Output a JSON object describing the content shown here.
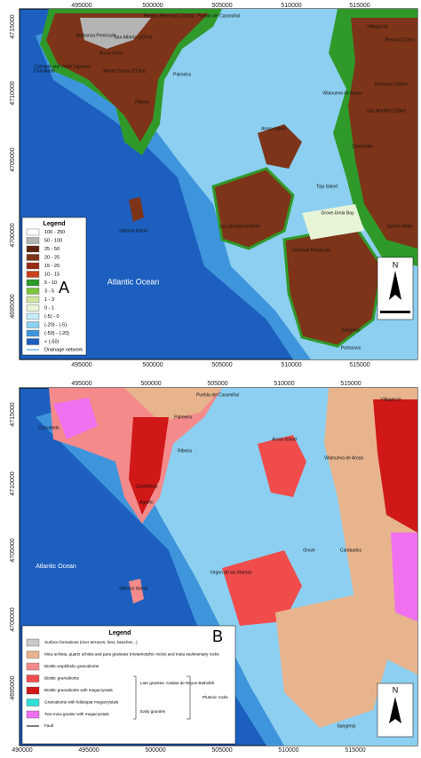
{
  "panel_a": {
    "letter": "A",
    "ocean": "Atlantic Ocean",
    "north": "N",
    "x_ticks": [
      "495000",
      "500000",
      "505000",
      "510000",
      "515000"
    ],
    "y_ticks": [
      "4715000",
      "4710000",
      "4705000",
      "4700000",
      "4695000"
    ],
    "legend": {
      "title": "Legend",
      "items": [
        {
          "label": "100 - 250",
          "color": "#ffffff"
        },
        {
          "label": "50 - 100",
          "color": "#b4b4b4"
        },
        {
          "label": "25 - 50",
          "color": "#5e2410"
        },
        {
          "label": "20 - 25",
          "color": "#7d3418"
        },
        {
          "label": "15 - 20",
          "color": "#9a2a14"
        },
        {
          "label": "10 - 15",
          "color": "#c8401c"
        },
        {
          "label": "5 - 10",
          "color": "#2f9a2a"
        },
        {
          "label": "3 - 5",
          "color": "#7cc43c"
        },
        {
          "label": "1 - 3",
          "color": "#cfe6a0"
        },
        {
          "label": "0 - 1",
          "color": "#e8f4d8"
        },
        {
          "label": "(-5) - 0",
          "color": "#c6ecf8"
        },
        {
          "label": "(-20) - (-5)",
          "color": "#8ccff0"
        },
        {
          "label": "(-50) - (-20)",
          "color": "#3f95db"
        },
        {
          "label": "< (-50)",
          "color": "#1c5fbf"
        }
      ],
      "drainage": "Drainage network"
    },
    "places": [
      "Piedras Bermejas (210m)",
      "Puebla del Caramiñal",
      "Barbanza Peninsula",
      "San Alberto (207m)",
      "Arosa River",
      "Carrapal and Vixán Lagoons",
      "Corrubedo",
      "Monte Castro (213m)",
      "Palmeira",
      "Ribeira",
      "Arosa Island",
      "Villanueva de Arosa",
      "Villagarcía",
      "Remoa (113m)",
      "Trevonzo (138m)",
      "San Martiño (133m)",
      "Cambados",
      "Sálvora Island",
      "Toja Island",
      "Grove-Umia Bay",
      "La Lanzada tombolo",
      "Castrove Peninsula",
      "Sangenjo",
      "Portonovo",
      "Salnés Valley"
    ]
  },
  "panel_b": {
    "letter": "B",
    "ocean": "Atlantic Ocean",
    "north": "N",
    "x_ticks_top": [
      "495000",
      "500000",
      "505000",
      "510000",
      "515000"
    ],
    "x_ticks_bottom": [
      "490000",
      "495000",
      "500000",
      "505000",
      "510000",
      "515000"
    ],
    "y_ticks": [
      "4715000",
      "4710000",
      "4705000",
      "4700000",
      "4695000"
    ],
    "legend": {
      "title": "Legend",
      "items": [
        {
          "label": "Surface formations (river terraces, fans, beaches...)",
          "color": "#c8c8c8"
        },
        {
          "label": "Mica schists, quartz schists and para gneisses (metamorphic rocks) and meta sedimentary rocks",
          "color": "#e8b48e"
        },
        {
          "label": "Biotitic-anphibolic granodiorite",
          "color": "#f48a8a"
        },
        {
          "label": "Biotitic granodiorite",
          "color": "#f04c4c"
        },
        {
          "label": "Biotitic granodiorite with megacrystals",
          "color": "#d01818"
        },
        {
          "label": "Granodiorite with feldespar megacrystals",
          "color": "#2fe0d8"
        },
        {
          "label": "Two-mica granite with megacrystals",
          "color": "#f070f0"
        }
      ],
      "groups": [
        "Late granites: Caldas de Reyes Batholith",
        "Early granites",
        "Plutonic rocks"
      ],
      "fault": "Fault"
    },
    "places": [
      "Puebla del Caramiñal",
      "Palmeira",
      "Corrubedo",
      "Ribeira",
      "Castiñeiras",
      "Aguiño",
      "Arosa Island",
      "Villanueva de Arosa",
      "Villagarcía",
      "Sálvora Island",
      "Virgen de las Mareas",
      "Grove",
      "Cambados",
      "Sangenjo"
    ]
  }
}
